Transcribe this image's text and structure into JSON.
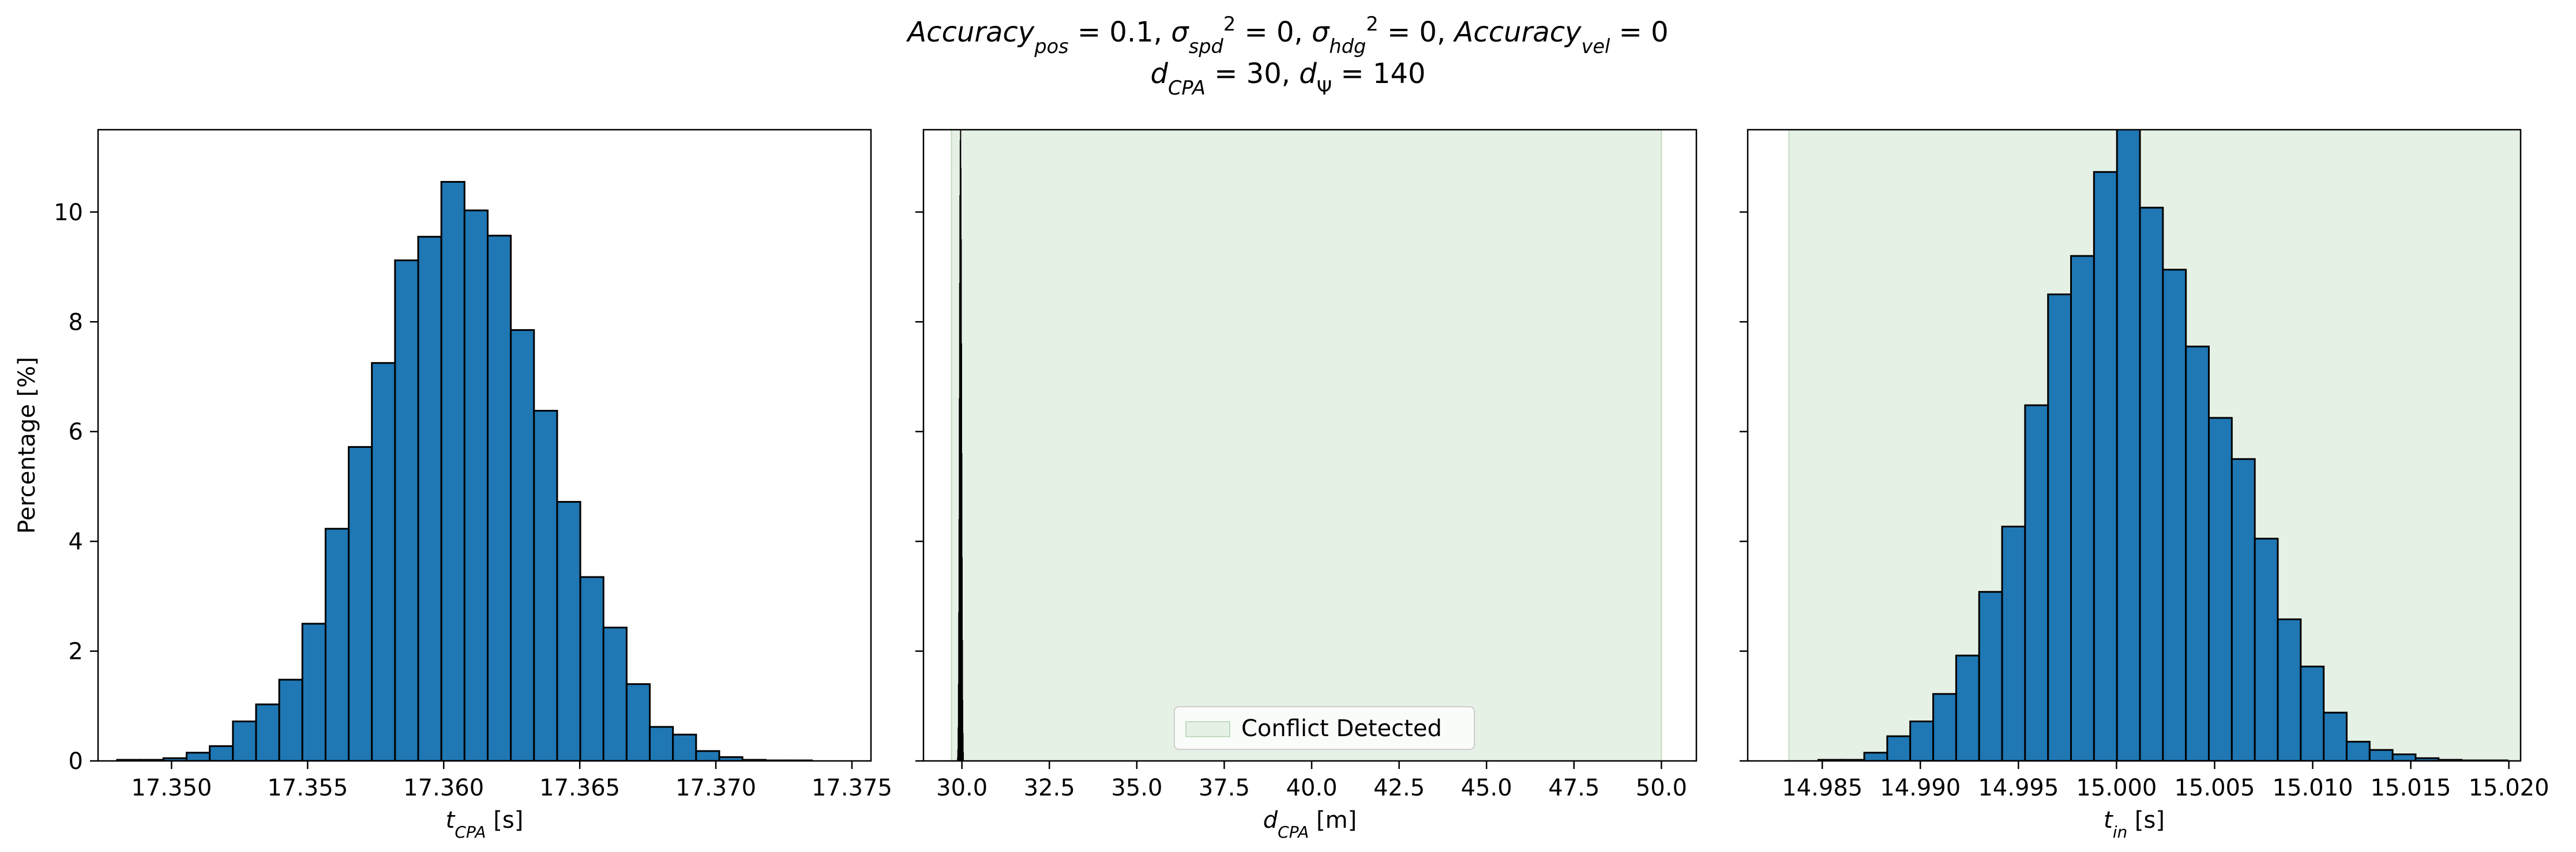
{
  "figure": {
    "title_line1": [
      {
        "t": "Accuracy",
        "it": true
      },
      {
        "t": "pos",
        "it": true,
        "sub": true
      },
      {
        "t": " = 0.1, "
      },
      {
        "t": "σ",
        "it": true
      },
      {
        "t": "spd",
        "it": true,
        "sub": true
      },
      {
        "t": "2",
        "sup": true
      },
      {
        "t": " = 0, "
      },
      {
        "t": "σ",
        "it": true
      },
      {
        "t": "hdg",
        "it": true,
        "sub": true
      },
      {
        "t": "2",
        "sup": true
      },
      {
        "t": " = 0, "
      },
      {
        "t": "Accuracy",
        "it": true
      },
      {
        "t": "vel",
        "it": true,
        "sub": true
      },
      {
        "t": " = 0"
      }
    ],
    "title_line2": [
      {
        "t": "d",
        "it": true
      },
      {
        "t": "CPA",
        "it": true,
        "sub": true
      },
      {
        "t": " = 30, "
      },
      {
        "t": "d",
        "it": true
      },
      {
        "t": "Ψ",
        "sub": true
      },
      {
        "t": " = 140"
      }
    ]
  },
  "chart_data": [
    {
      "type": "bar",
      "subtype": "histogram",
      "bar_color": "#1f77b4",
      "edge_color": "#000000",
      "xlim": [
        17.3473,
        17.3757
      ],
      "ylim": [
        0,
        11.5
      ],
      "xticks": [
        "17.350",
        "17.355",
        "17.360",
        "17.365",
        "17.370",
        "17.375"
      ],
      "yticks": [
        "0",
        "2",
        "4",
        "6",
        "8",
        "10"
      ],
      "ylabel": "Percentage [%]",
      "xlabel": [
        {
          "t": "t",
          "it": true
        },
        {
          "t": "CPA",
          "it": true,
          "sub": true
        },
        {
          "t": " [s]"
        }
      ],
      "bin_width": 0.000851,
      "bin_start": 17.348,
      "values": [
        0.02,
        0.02,
        0.05,
        0.15,
        0.27,
        0.72,
        1.03,
        1.48,
        2.5,
        4.23,
        5.72,
        7.25,
        9.12,
        9.55,
        10.55,
        10.03,
        9.57,
        7.85,
        6.38,
        4.72,
        3.35,
        2.43,
        1.4,
        0.62,
        0.48,
        0.18,
        0.07,
        0.02,
        0.01,
        0.01
      ]
    },
    {
      "type": "bar",
      "subtype": "histogram",
      "bar_color": "#1f77b4",
      "edge_color": "#000000",
      "xlim": [
        28.9,
        51.0
      ],
      "ylim": [
        0,
        11.5
      ],
      "xticks": [
        "30.0",
        "32.5",
        "35.0",
        "37.5",
        "40.0",
        "42.5",
        "45.0",
        "47.5",
        "50.0"
      ],
      "yticks": [
        "0",
        "2",
        "4",
        "6",
        "8",
        "10"
      ],
      "ylabel": "",
      "xlabel": [
        {
          "t": "d",
          "it": true
        },
        {
          "t": "CPA",
          "it": true,
          "sub": true
        },
        {
          "t": " [m]"
        }
      ],
      "bin_width": 0.0085,
      "bin_start": 29.8725,
      "values": [
        0.05,
        0.2,
        0.6,
        1.4,
        2.7,
        4.4,
        6.6,
        8.7,
        10.3,
        11.3,
        11.5,
        10.8,
        9.5,
        7.6,
        5.6,
        3.7,
        2.2,
        1.1,
        0.5,
        0.15
      ],
      "shaded_region": {
        "x": [
          29.7,
          50.0
        ],
        "color": "#e6f1e6",
        "edge": "#bfdcbf",
        "label": "Conflict Detected"
      },
      "legend": {
        "position": "lower-center",
        "entries": [
          "Conflict Detected"
        ]
      }
    },
    {
      "type": "bar",
      "subtype": "histogram",
      "bar_color": "#1f77b4",
      "edge_color": "#000000",
      "xlim": [
        14.9812,
        15.0206
      ],
      "ylim": [
        0,
        11.5
      ],
      "xticks": [
        "14.985",
        "14.990",
        "14.995",
        "15.000",
        "15.005",
        "15.010",
        "15.015",
        "15.020"
      ],
      "yticks": [
        "0",
        "2",
        "4",
        "6",
        "8",
        "10"
      ],
      "ylabel": "",
      "xlabel": [
        {
          "t": "t",
          "it": true
        },
        {
          "t": "in",
          "it": true,
          "sub": true
        },
        {
          "t": " [s]"
        }
      ],
      "bin_width": 0.001171,
      "bin_start": 14.9848,
      "values": [
        0.02,
        0.02,
        0.15,
        0.45,
        0.72,
        1.22,
        1.92,
        3.08,
        4.27,
        6.48,
        8.5,
        9.2,
        10.73,
        11.62,
        10.08,
        8.95,
        7.55,
        6.25,
        5.5,
        4.05,
        2.58,
        1.72,
        0.88,
        0.35,
        0.2,
        0.12,
        0.05,
        0.02,
        0.01,
        0.01
      ],
      "shaded_region": {
        "x": [
          14.9833,
          15.022
        ],
        "color": "#e6f1e6",
        "edge": "#bfdcbf",
        "label": "Conflict Detected"
      }
    }
  ]
}
